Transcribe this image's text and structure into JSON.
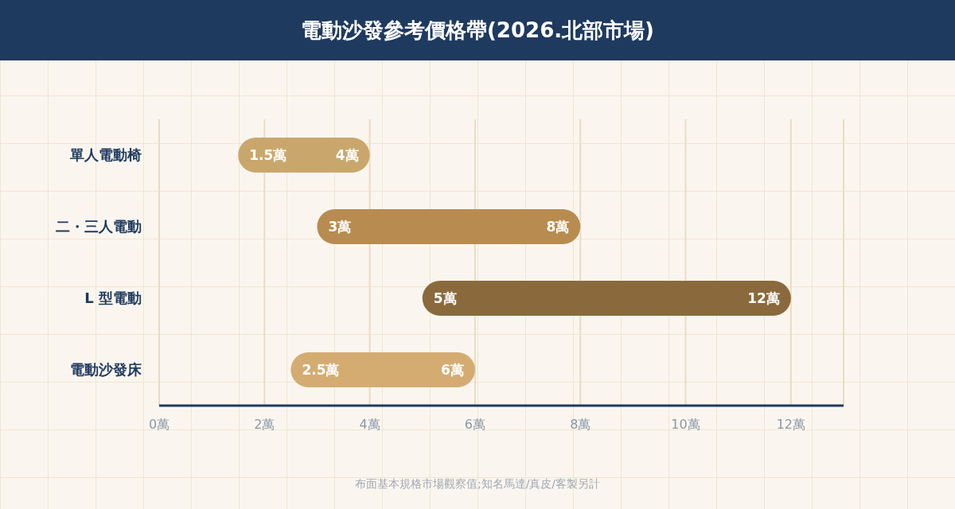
{
  "chart_data": {
    "type": "bar",
    "orientation": "horizontal",
    "title": "電動沙發參考價格帶(2026.北部市場)",
    "categories": [
      "單人電動椅",
      "二・三人電動",
      "L 型電動",
      "電動沙發床"
    ],
    "base": [
      1.5,
      3,
      5,
      2.5
    ],
    "values": [
      2.5,
      5,
      7,
      3.5
    ],
    "colors": [
      "#c9a76c",
      "#b88c50",
      "#8a6a3c",
      "#d4ac72"
    ],
    "xlim": [
      0,
      13
    ],
    "xticks": [
      {
        "value": 0,
        "label": "0萬"
      },
      {
        "value": 2,
        "label": "2萬"
      },
      {
        "value": 4,
        "label": "4萬"
      },
      {
        "value": 6,
        "label": "6萬"
      },
      {
        "value": 8,
        "label": "8萬"
      },
      {
        "value": 10,
        "label": "10萬"
      },
      {
        "value": 12,
        "label": "12萬"
      }
    ],
    "grid": "x",
    "annotations": [
      {
        "text": "1.5萬",
        "x": 1.5,
        "y": "單人電動椅"
      },
      {
        "text": "4萬",
        "x": 4,
        "y": "單人電動椅"
      },
      {
        "text": "3萬",
        "x": 3,
        "y": "二・三人電動"
      },
      {
        "text": "8萬",
        "x": 8,
        "y": "二・三人電動"
      },
      {
        "text": "5萬",
        "x": 5,
        "y": "L 型電動"
      },
      {
        "text": "12萬",
        "x": 12,
        "y": "L 型電動"
      },
      {
        "text": "2.5萬",
        "x": 2.5,
        "y": "電動沙發床"
      },
      {
        "text": "6萬",
        "x": 6,
        "y": "電動沙發床"
      },
      "布面基本規格市場觀察值;知名馬達/真皮/客製另計"
    ]
  }
}
